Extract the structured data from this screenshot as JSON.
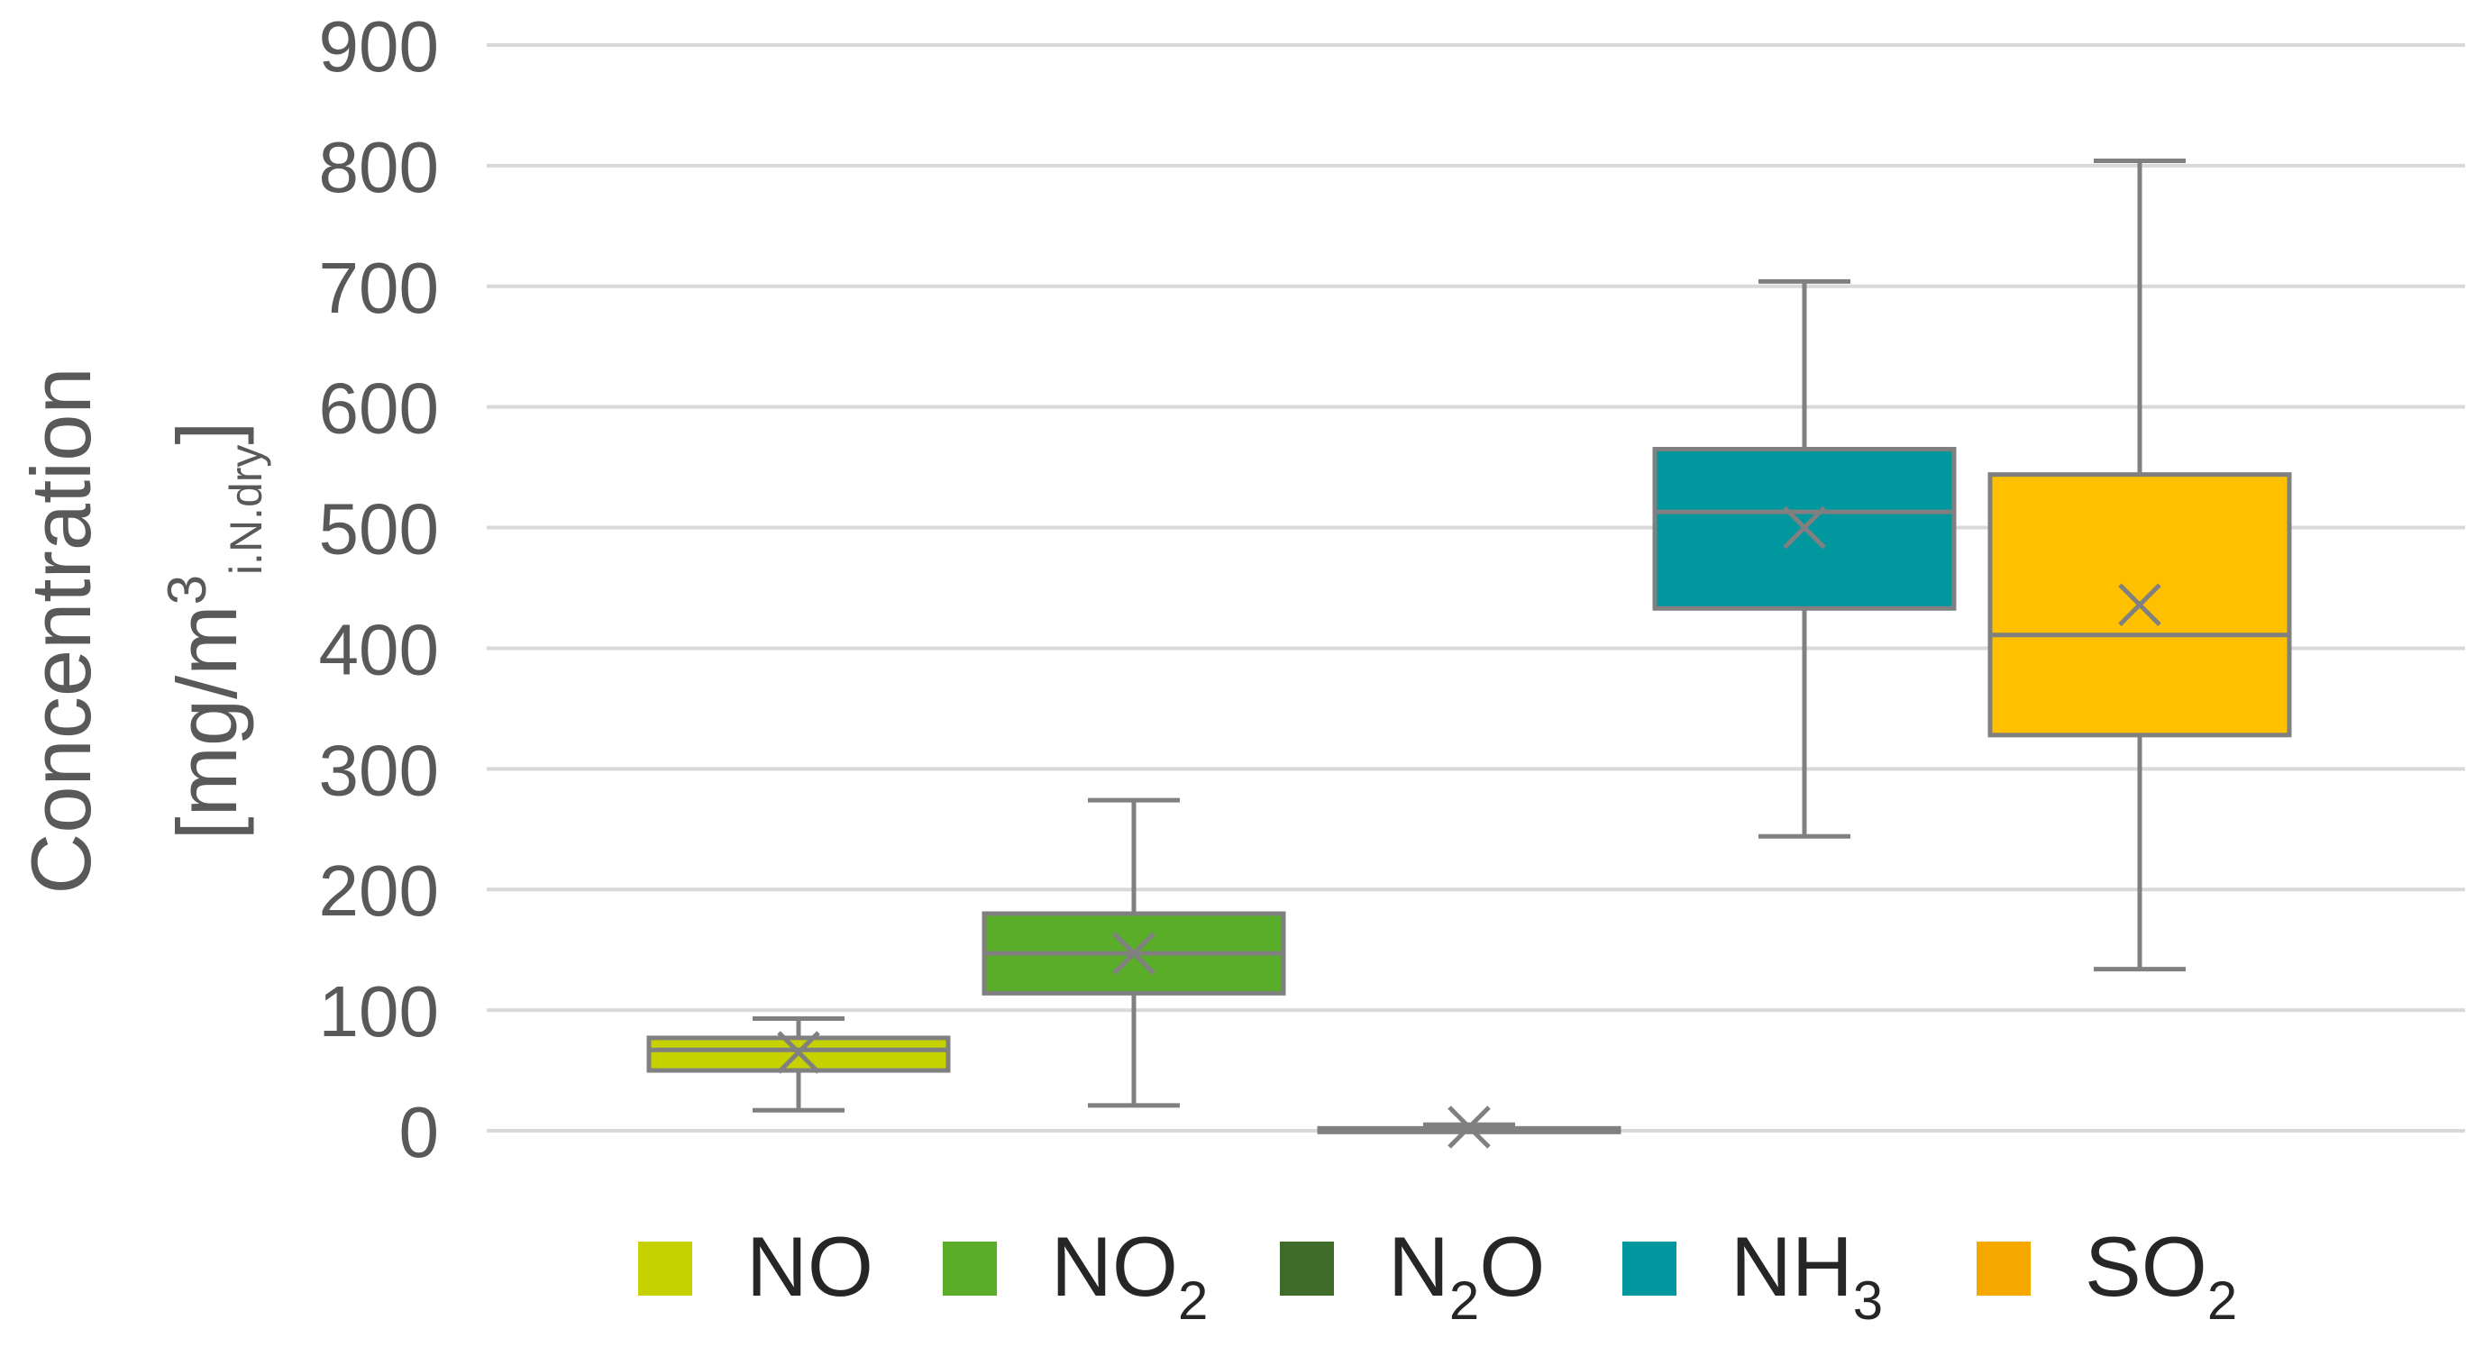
{
  "chart_data": {
    "type": "box",
    "ylabel": {
      "line1": "Concentration",
      "line2_pre": "[mg/m",
      "line2_sup": "3",
      "line2_sub": "i.N.dry",
      "line2_post": "]"
    },
    "ylim": [
      0,
      900
    ],
    "yticks": [
      0,
      100,
      200,
      300,
      400,
      500,
      600,
      700,
      800,
      900
    ],
    "grid": true,
    "legend_position": "bottom",
    "series": [
      {
        "name": "NO",
        "label_base": "NO",
        "label_sub": "",
        "label_tail": "",
        "color": "#c5d200",
        "min": 17,
        "q1": 50,
        "median": 67,
        "q3": 77,
        "max": 93,
        "mean": 65
      },
      {
        "name": "NO2",
        "label_base": "NO",
        "label_sub": "2",
        "label_tail": "",
        "color": "#5aad28",
        "min": 21,
        "q1": 114,
        "median": 147,
        "q3": 180,
        "max": 274,
        "mean": 147
      },
      {
        "name": "N2O",
        "label_base": "N",
        "label_sub": "2",
        "label_tail": "O",
        "color": "#3f6d29",
        "min": 0,
        "q1": 0,
        "median": 1,
        "q3": 2,
        "max": 5,
        "mean": 3
      },
      {
        "name": "NH3",
        "label_base": "NH",
        "label_sub": "3",
        "label_tail": "",
        "color": "#00979f",
        "min": 244,
        "q1": 433,
        "median": 513,
        "q3": 565,
        "max": 704,
        "mean": 500
      },
      {
        "name": "SO2",
        "label_base": "SO",
        "label_sub": "2",
        "label_tail": "",
        "color": "#ffc000",
        "legend_color": "#f4a800",
        "min": 134,
        "q1": 328,
        "median": 411,
        "q3": 544,
        "max": 804,
        "mean": 436
      }
    ]
  }
}
